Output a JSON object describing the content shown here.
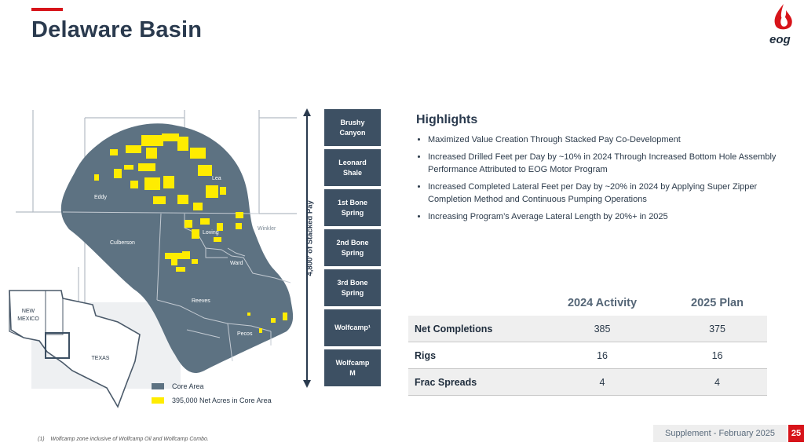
{
  "header": {
    "title": "Delaware Basin",
    "logo_text": "eog",
    "accent_color": "#d7141a"
  },
  "map": {
    "county_labels": [
      "Eddy",
      "Lea",
      "Loving",
      "Winkler",
      "Culberson",
      "Ward",
      "Reeves",
      "Pecos"
    ],
    "inset_labels": {
      "new_mexico_line1": "NEW",
      "new_mexico_line2": "MEXICO",
      "texas": "TEXAS"
    },
    "core_color": "#5d7282",
    "acreage_color": "#ffec00",
    "legend": [
      {
        "label": "Core Area",
        "color": "#5d7282"
      },
      {
        "label": "395,000 Net Acres in Core Area",
        "color": "#ffec00"
      }
    ]
  },
  "stratigraphy": {
    "axis_label": "4,800' of Stacked Pay",
    "zones": [
      {
        "line1": "Brushy",
        "line2": "Canyon",
        "sup": ""
      },
      {
        "line1": "Leonard",
        "line2": "Shale",
        "sup": ""
      },
      {
        "line1": "1st Bone",
        "line2": "Spring",
        "sup": ""
      },
      {
        "line1": "2nd Bone",
        "line2": "Spring",
        "sup": ""
      },
      {
        "line1": "3rd Bone",
        "line2": "Spring",
        "sup": ""
      },
      {
        "line1": "Wolfcamp¹",
        "line2": "",
        "sup": ""
      },
      {
        "line1": "Wolfcamp",
        "line2": "M",
        "sup": ""
      }
    ]
  },
  "highlights": {
    "title": "Highlights",
    "bullets": [
      "Maximized Value Creation Through Stacked Pay Co-Development",
      "Increased Drilled Feet per Day by ~10% in 2024 Through Increased Bottom Hole Assembly Performance Attributed to EOG Motor Program",
      "Increased Completed Lateral Feet per Day by ~20% in 2024 by Applying Super Zipper Completion Method and Continuous Pumping Operations",
      "Increasing Program’s Average Lateral Length by 20%+ in 2025"
    ]
  },
  "kpi_table": {
    "headers": [
      "2024 Activity",
      "2025 Plan"
    ],
    "rows": [
      {
        "label": "Net Completions",
        "v2024": "385",
        "v2025": "375"
      },
      {
        "label": "Rigs",
        "v2024": "16",
        "v2025": "16"
      },
      {
        "label": "Frac Spreads",
        "v2024": "4",
        "v2025": "4"
      }
    ]
  },
  "footer": {
    "footnote_marker": "(1)",
    "footnote": "Wolfcamp zone inclusive of Wolfcamp Oil and Wolfcamp Combo.",
    "supplement": "Supplement - February 2025",
    "page_number": "25"
  }
}
